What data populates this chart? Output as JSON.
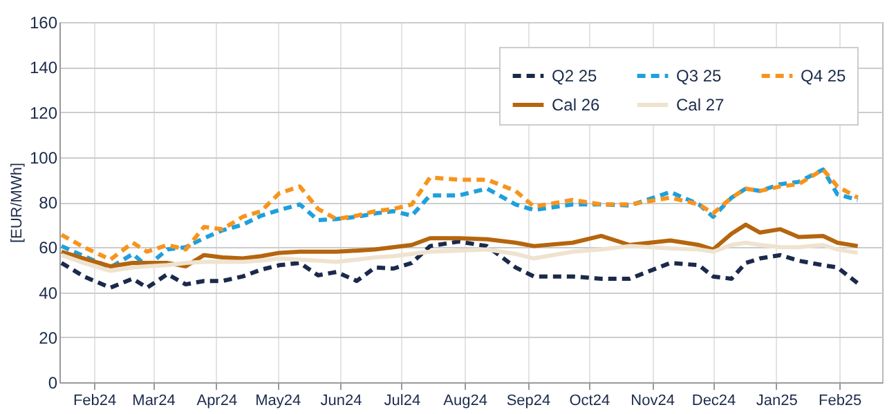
{
  "chart_data": {
    "type": "line",
    "ylabel": "[EUR/MWh]",
    "x": [
      "2024-01-16",
      "2024-01-27",
      "2024-02-09",
      "2024-02-20",
      "2024-02-27",
      "2024-03-08",
      "2024-03-17",
      "2024-03-26",
      "2024-04-04",
      "2024-04-14",
      "2024-04-23",
      "2024-05-02",
      "2024-05-12",
      "2024-05-21",
      "2024-05-30",
      "2024-06-09",
      "2024-06-18",
      "2024-06-27",
      "2024-07-06",
      "2024-07-15",
      "2024-07-29",
      "2024-08-12",
      "2024-08-26",
      "2024-09-04",
      "2024-09-23",
      "2024-10-07",
      "2024-10-21",
      "2024-11-10",
      "2024-11-24",
      "2024-12-01",
      "2024-12-10",
      "2024-12-17",
      "2024-12-24",
      "2025-01-03",
      "2025-01-12",
      "2025-01-24",
      "2025-01-31",
      "2025-02-10"
    ],
    "series": [
      {
        "name": "Q2 25",
        "color": "#1b2a4a",
        "line_style": "dashed",
        "values": [
          53,
          47,
          42,
          46,
          42,
          48,
          43.5,
          45,
          45,
          47,
          50,
          52,
          53,
          47.5,
          49,
          45,
          51,
          50.5,
          53,
          60.5,
          62.5,
          60.5,
          51,
          47,
          47,
          46,
          46,
          53,
          52,
          47,
          46,
          53,
          55,
          56.5,
          54,
          52,
          51,
          44
        ]
      },
      {
        "name": "Q3 25",
        "color": "#1ea0dc",
        "line_style": "dashed",
        "values": [
          60.5,
          56,
          51,
          57,
          51.5,
          59,
          60,
          64,
          67.5,
          70,
          74,
          76.5,
          79,
          72,
          72.5,
          73.5,
          75,
          76,
          74,
          83,
          83,
          86,
          79,
          76.5,
          79,
          79,
          78.5,
          84.5,
          79,
          73.5,
          82,
          86,
          85,
          88,
          89,
          94.5,
          83.5,
          81
        ]
      },
      {
        "name": "Q4 25",
        "color": "#f7941d",
        "line_style": "dashed",
        "values": [
          65.5,
          60,
          54.5,
          62,
          58,
          61,
          59,
          69,
          68,
          73.5,
          76,
          84,
          87,
          77,
          72.5,
          74,
          76,
          77,
          79,
          91,
          90,
          90,
          85,
          78,
          81,
          79,
          79,
          82,
          79,
          75,
          82,
          86,
          85,
          87,
          88,
          94.5,
          87,
          82
        ]
      },
      {
        "name": "Cal 26",
        "color": "#b5650d",
        "line_style": "solid",
        "values": [
          58,
          55,
          51.5,
          53,
          53,
          53,
          51.5,
          56.5,
          55.5,
          55,
          56,
          57.5,
          58,
          58,
          58,
          58.5,
          59,
          60,
          61,
          64,
          64,
          63.5,
          62,
          60.5,
          62,
          65,
          61,
          63,
          61,
          59,
          66,
          70,
          66.5,
          68,
          64.5,
          65,
          62,
          60.5
        ]
      },
      {
        "name": "Cal 27",
        "color": "#efe3d0",
        "line_style": "solid",
        "values": [
          56.5,
          53,
          49.5,
          51,
          51.5,
          52,
          53,
          53.5,
          53.5,
          53.5,
          54,
          55,
          54.5,
          54,
          53.5,
          54.5,
          55.5,
          56,
          57,
          58,
          58.5,
          59,
          57,
          55,
          58,
          59,
          60.5,
          59.5,
          59,
          58,
          61,
          62,
          61,
          60,
          60,
          61,
          59,
          57.5
        ]
      }
    ],
    "xlim": [
      "2024-01-15",
      "2025-02-22"
    ],
    "xticks": [
      {
        "value": "2024-02-01",
        "label": "Feb24"
      },
      {
        "value": "2024-03-01",
        "label": "Mar24"
      },
      {
        "value": "2024-04-01",
        "label": "Apr24"
      },
      {
        "value": "2024-05-01",
        "label": "May24"
      },
      {
        "value": "2024-06-01",
        "label": "Jun24"
      },
      {
        "value": "2024-07-01",
        "label": "Jul24"
      },
      {
        "value": "2024-08-01",
        "label": "Aug24"
      },
      {
        "value": "2024-09-01",
        "label": "Sep24"
      },
      {
        "value": "2024-10-01",
        "label": "Oct24"
      },
      {
        "value": "2024-11-01",
        "label": "Nov24"
      },
      {
        "value": "2024-12-01",
        "label": "Dec24"
      },
      {
        "value": "2025-01-01",
        "label": "Jan25"
      },
      {
        "value": "2025-02-01",
        "label": "Feb25"
      }
    ],
    "ylim": [
      0,
      160
    ],
    "yticks": [
      0,
      20,
      40,
      60,
      80,
      100,
      120,
      140,
      160
    ],
    "grid": true,
    "legend": "top right",
    "marker": "none"
  }
}
